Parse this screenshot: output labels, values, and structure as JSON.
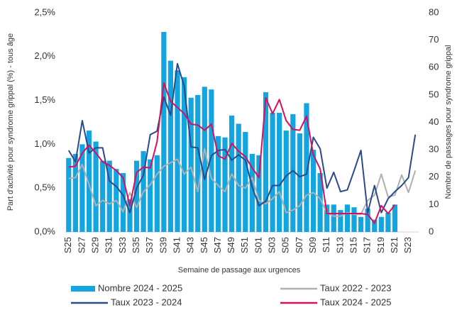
{
  "chart_data": {
    "type": "bar-line",
    "x_label": "Semaine de passage aux urgences",
    "y_label": "Part d'activité pour syndrome grippal (%) - tous âge",
    "y2_label": "Nombre de passages pour syndrome grippal",
    "categories": [
      "S25",
      null,
      "S27",
      null,
      "S29",
      null,
      "S31",
      null,
      "S33",
      null,
      "S35",
      null,
      "S37",
      null,
      "S39",
      null,
      "S41",
      null,
      "S43",
      null,
      "S45",
      null,
      "S47",
      null,
      "S49",
      null,
      "S51",
      null,
      "S01",
      null,
      "S03",
      null,
      "S05",
      null,
      "S07",
      null,
      "S09",
      null,
      "S11",
      null,
      "S13",
      null,
      "S15",
      null,
      "S17",
      null,
      "S19",
      null,
      "S21",
      null,
      "S23",
      null
    ],
    "ylim": [
      0,
      2.5
    ],
    "yticks": [
      {
        "value": 0,
        "label": "0,0%"
      },
      {
        "value": 0.5,
        "label": "0,5%"
      },
      {
        "value": 1,
        "label": "1,0%"
      },
      {
        "value": 1.5,
        "label": "1,5%"
      },
      {
        "value": 2,
        "label": "2,0%"
      },
      {
        "value": 2.5,
        "label": "2,5%"
      }
    ],
    "y2lim": [
      0,
      80
    ],
    "y2ticks": [
      0,
      10,
      20,
      30,
      40,
      50,
      60,
      70,
      80
    ],
    "grid": false,
    "series": [
      {
        "name": "Nombre 2024 - 2025",
        "type": "bar",
        "axis": "y2",
        "color": "#12a5e0",
        "values": [
          27,
          28.5,
          32,
          37,
          33,
          26,
          26,
          23,
          21.5,
          12,
          26,
          29.5,
          26.5,
          28,
          73,
          62.5,
          59,
          56.5,
          49,
          50,
          53,
          52,
          35,
          34.5,
          42.5,
          39.5,
          36.5,
          28.5,
          28,
          51,
          43.5,
          43.5,
          37,
          43,
          36,
          47,
          30,
          21.5,
          10,
          10,
          8,
          10,
          9,
          5.5,
          8.5,
          4.5,
          5.5,
          7,
          10,
          null,
          null,
          null
        ]
      },
      {
        "name": "Taux 2022 - 2023",
        "type": "line",
        "color": "#b0b0b0",
        "values": [
          0.61,
          0.62,
          0.77,
          0.54,
          0.3,
          0.36,
          0.32,
          0.36,
          0.23,
          0.45,
          0.28,
          0.46,
          0.54,
          0.66,
          0.75,
          0.79,
          0.83,
          0.66,
          0.74,
          0.46,
          0.95,
          0.61,
          0.53,
          0.46,
          0.66,
          0.53,
          0.5,
          0.62,
          0.36,
          0.32,
          0.38,
          0.46,
          0.22,
          0.25,
          0.3,
          0.42,
          0.45,
          0.38,
          0.22,
          0.18,
          0.18,
          0.22,
          0.2,
          0.2,
          0.36,
          0.42,
          0.66,
          0.4,
          0.42,
          0.65,
          0.45,
          0.7
        ]
      },
      {
        "name": "Taux 2023 - 2024",
        "type": "line",
        "color": "#2b4a8c",
        "values": [
          0.93,
          0.8,
          1.27,
          0.9,
          0.96,
          0.96,
          0.58,
          0.52,
          0.42,
          0.22,
          0.5,
          0.65,
          1.11,
          1.15,
          1.54,
          1.33,
          1.92,
          1.66,
          0.97,
          0.96,
          0.6,
          0.87,
          0.93,
          0.94,
          0.82,
          0.88,
          0.82,
          0.51,
          0.3,
          0.35,
          0.53,
          0.53,
          0.64,
          0.7,
          0.63,
          0.66,
          1.08,
          0.95,
          0.5,
          0.68,
          0.46,
          0.48,
          0.7,
          0.93,
          0.22,
          0.53,
          0.22,
          0.38,
          0.46,
          0.53,
          0.62,
          1.11
        ]
      },
      {
        "name": "Taux 2024 - 2025",
        "type": "line",
        "color": "#d6105e",
        "values": [
          0.74,
          0.75,
          0.9,
          0.99,
          0.9,
          0.8,
          0.76,
          0.7,
          0.62,
          0.3,
          0.68,
          0.74,
          0.73,
          1.03,
          1.7,
          1.49,
          1.42,
          1.35,
          1.23,
          1.22,
          1.16,
          1.23,
          0.87,
          0.83,
          1.01,
          0.92,
          0.86,
          0.73,
          0.62,
          1.53,
          1.35,
          1.51,
          1.27,
          1.17,
          1.16,
          1.32,
          0.88,
          0.72,
          0.21,
          0.21,
          0.21,
          0.21,
          0.21,
          0.21,
          0.2,
          0.1,
          0.3,
          0.21,
          0.31,
          null,
          null,
          null
        ]
      }
    ]
  }
}
